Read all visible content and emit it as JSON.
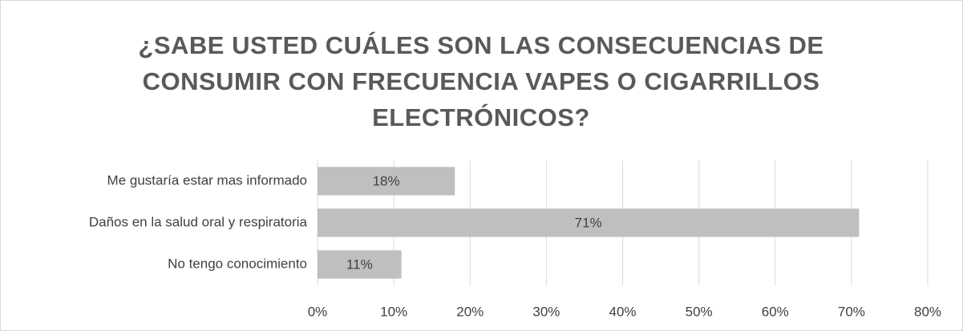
{
  "chart_data": {
    "type": "barh",
    "title": "¿SABE USTED CUÁLES SON LAS CONSECUENCIAS DE CONSUMIR CON FRECUENCIA VAPES O CIGARRILLOS ELECTRÓNICOS?",
    "categories": [
      "Me gustaría estar mas informado",
      "Daños en la salud oral y respiratoria",
      "No tengo conocimiento"
    ],
    "values": [
      18,
      71,
      11
    ],
    "value_labels": [
      "18%",
      "71%",
      "11%"
    ],
    "color": "#bfbfbf",
    "xlim": [
      0,
      80
    ],
    "xticks": [
      {
        "value": 0,
        "label": "0%"
      },
      {
        "value": 10,
        "label": "10%"
      },
      {
        "value": 20,
        "label": "20%"
      },
      {
        "value": 30,
        "label": "30%"
      },
      {
        "value": 40,
        "label": "40%"
      },
      {
        "value": 50,
        "label": "50%"
      },
      {
        "value": 60,
        "label": "60%"
      },
      {
        "value": 70,
        "label": "70%"
      },
      {
        "value": 80,
        "label": "80%"
      }
    ],
    "grid": true
  }
}
